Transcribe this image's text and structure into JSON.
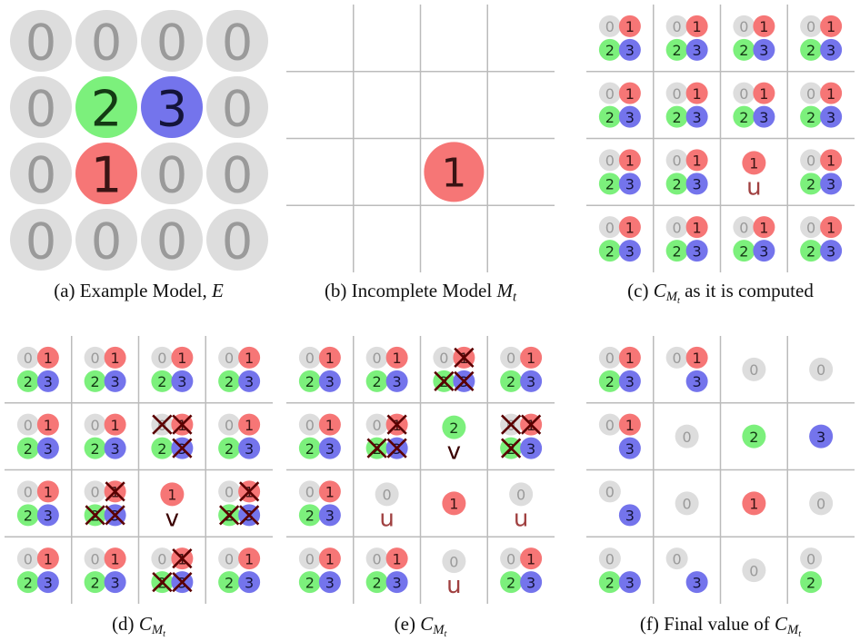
{
  "palette": [
    {
      "fill": "#dddddd",
      "ink": "#9a9a9a"
    },
    {
      "fill": "#f67676",
      "ink": "#3a1414"
    },
    {
      "fill": "#7cf07c",
      "ink": "#143a14"
    },
    {
      "fill": "#7474ec",
      "ink": "#14143a"
    }
  ],
  "label_colors": {
    "u": "#a04040",
    "v": "#3a0000"
  },
  "cross_color": "#5a0000",
  "panels": {
    "a": {
      "caption": {
        "before": "(a) Example Model, ",
        "math": {
          "base": "E"
        }
      },
      "cells": [
        [
          "0",
          "0",
          "0",
          "0"
        ],
        [
          "0",
          "2",
          "3",
          "0"
        ],
        [
          "0",
          "1",
          "0",
          "0"
        ],
        [
          "0",
          "0",
          "0",
          "0"
        ]
      ]
    },
    "b": {
      "caption": {
        "before": "(b) Incomplete Model ",
        "math": {
          "base": "M",
          "sub": "t"
        }
      },
      "cells": [
        [
          null,
          null,
          null,
          null
        ],
        [
          null,
          null,
          null,
          null
        ],
        [
          null,
          null,
          "1",
          null
        ],
        [
          null,
          null,
          null,
          null
        ]
      ]
    },
    "c": {
      "caption": {
        "before": "(c) ",
        "math": {
          "base": "C",
          "sub": "M",
          "subsub": "t"
        },
        "after": " as it is computed"
      },
      "cells": [
        [
          {
            "values": [
              "0",
              "1",
              "2",
              "3"
            ]
          },
          {
            "values": [
              "0",
              "1",
              "2",
              "3"
            ]
          },
          {
            "values": [
              "0",
              "1",
              "2",
              "3"
            ]
          },
          {
            "values": [
              "0",
              "1",
              "2",
              "3"
            ]
          }
        ],
        [
          {
            "values": [
              "0",
              "1",
              "2",
              "3"
            ]
          },
          {
            "values": [
              "0",
              "1",
              "2",
              "3"
            ]
          },
          {
            "values": [
              "0",
              "1",
              "2",
              "3"
            ]
          },
          {
            "values": [
              "0",
              "1",
              "2",
              "3"
            ]
          }
        ],
        [
          {
            "values": [
              "0",
              "1",
              "2",
              "3"
            ]
          },
          {
            "values": [
              "0",
              "1",
              "2",
              "3"
            ]
          },
          {
            "values": [
              "1"
            ],
            "label": "u"
          },
          {
            "values": [
              "0",
              "1",
              "2",
              "3"
            ]
          }
        ],
        [
          {
            "values": [
              "0",
              "1",
              "2",
              "3"
            ]
          },
          {
            "values": [
              "0",
              "1",
              "2",
              "3"
            ]
          },
          {
            "values": [
              "0",
              "1",
              "2",
              "3"
            ]
          },
          {
            "values": [
              "0",
              "1",
              "2",
              "3"
            ]
          }
        ]
      ]
    },
    "d": {
      "caption": {
        "before": "(d) ",
        "math": {
          "base": "C",
          "sub": "M",
          "subsub": "t"
        }
      },
      "cells": [
        [
          {
            "values": [
              "0",
              "1",
              "2",
              "3"
            ]
          },
          {
            "values": [
              "0",
              "1",
              "2",
              "3"
            ]
          },
          {
            "values": [
              "0",
              "1",
              "2",
              "3"
            ]
          },
          {
            "values": [
              "0",
              "1",
              "2",
              "3"
            ]
          }
        ],
        [
          {
            "values": [
              "0",
              "1",
              "2",
              "3"
            ]
          },
          {
            "values": [
              "0",
              "1",
              "2",
              "3"
            ]
          },
          {
            "values": [
              "0",
              "1",
              "2",
              "3"
            ],
            "crossed": [
              true,
              true,
              false,
              true
            ]
          },
          {
            "values": [
              "0",
              "1",
              "2",
              "3"
            ]
          }
        ],
        [
          {
            "values": [
              "0",
              "1",
              "2",
              "3"
            ]
          },
          {
            "values": [
              "0",
              "1",
              "2",
              "3"
            ],
            "crossed": [
              false,
              true,
              true,
              true
            ]
          },
          {
            "values": [
              "1"
            ],
            "label": "v"
          },
          {
            "values": [
              "0",
              "1",
              "2",
              "3"
            ],
            "crossed": [
              false,
              true,
              true,
              true
            ]
          }
        ],
        [
          {
            "values": [
              "0",
              "1",
              "2",
              "3"
            ]
          },
          {
            "values": [
              "0",
              "1",
              "2",
              "3"
            ]
          },
          {
            "values": [
              "0",
              "1",
              "2",
              "3"
            ],
            "crossed": [
              false,
              true,
              true,
              true
            ]
          },
          {
            "values": [
              "0",
              "1",
              "2",
              "3"
            ]
          }
        ]
      ]
    },
    "e": {
      "caption": {
        "before": "(e) ",
        "math": {
          "base": "C",
          "sub": "M",
          "subsub": "t"
        }
      },
      "cells": [
        [
          {
            "values": [
              "0",
              "1",
              "2",
              "3"
            ]
          },
          {
            "values": [
              "0",
              "1",
              "2",
              "3"
            ]
          },
          {
            "values": [
              "0",
              "1",
              "2",
              "3"
            ],
            "crossed": [
              false,
              true,
              true,
              true
            ]
          },
          {
            "values": [
              "0",
              "1",
              "2",
              "3"
            ]
          }
        ],
        [
          {
            "values": [
              "0",
              "1",
              "2",
              "3"
            ]
          },
          {
            "values": [
              "0",
              "1",
              "2",
              "3"
            ],
            "crossed": [
              false,
              true,
              true,
              true
            ]
          },
          {
            "values": [
              "2"
            ],
            "label": "v"
          },
          {
            "values": [
              "0",
              "1",
              "2",
              "3"
            ],
            "crossed": [
              true,
              true,
              true,
              false
            ]
          }
        ],
        [
          {
            "values": [
              "0",
              "1",
              "2",
              "3"
            ]
          },
          {
            "values": [
              "0"
            ],
            "label": "u"
          },
          {
            "values": [
              "1"
            ]
          },
          {
            "values": [
              "0"
            ],
            "label": "u"
          }
        ],
        [
          {
            "values": [
              "0",
              "1",
              "2",
              "3"
            ]
          },
          {
            "values": [
              "0",
              "1",
              "2",
              "3"
            ]
          },
          {
            "values": [
              "0"
            ],
            "label": "u"
          },
          {
            "values": [
              "0",
              "1",
              "2",
              "3"
            ]
          }
        ]
      ]
    },
    "f": {
      "caption": {
        "before": "(f) Final value of ",
        "math": {
          "base": "C",
          "sub": "M",
          "subsub": "t"
        }
      },
      "cells": [
        [
          {
            "values": [
              "0",
              "1",
              "2",
              "3"
            ]
          },
          {
            "values": [
              "0",
              "1",
              "3"
            ]
          },
          {
            "values": [
              "0"
            ]
          },
          {
            "values": [
              "0"
            ]
          }
        ],
        [
          {
            "values": [
              "0",
              "1",
              "3"
            ]
          },
          {
            "values": [
              "0"
            ]
          },
          {
            "values": [
              "2"
            ]
          },
          {
            "values": [
              "3"
            ]
          }
        ],
        [
          {
            "values": [
              "0",
              "3"
            ]
          },
          {
            "values": [
              "0"
            ]
          },
          {
            "values": [
              "1"
            ]
          },
          {
            "values": [
              "0"
            ]
          }
        ],
        [
          {
            "values": [
              "0",
              "2",
              "3"
            ]
          },
          {
            "values": [
              "0",
              "3"
            ]
          },
          {
            "values": [
              "0"
            ]
          },
          {
            "values": [
              "0",
              "2"
            ]
          }
        ]
      ]
    }
  }
}
